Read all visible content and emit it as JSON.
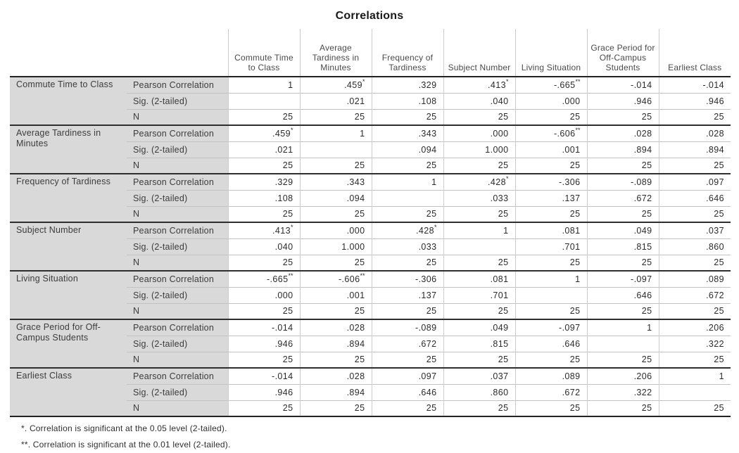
{
  "title": "Correlations",
  "table": {
    "columns": [
      "Commute Time to Class",
      "Average Tardiness in Minutes",
      "Frequency of Tardiness",
      "Subject Number",
      "Living Situation",
      "Grace Period for Off-Campus Students",
      "Earliest Class"
    ],
    "stat_labels": {
      "pearson": "Pearson Correlation",
      "sig": "Sig. (2-tailed)",
      "n": "N"
    },
    "variables": [
      {
        "name": "Commute Time to Class",
        "pearson": [
          "1",
          ".459*",
          ".329",
          ".413*",
          "-.665**",
          "-.014",
          "-.014"
        ],
        "sig": [
          "",
          ".021",
          ".108",
          ".040",
          ".000",
          ".946",
          ".946"
        ],
        "n": [
          "25",
          "25",
          "25",
          "25",
          "25",
          "25",
          "25"
        ]
      },
      {
        "name": "Average Tardiness in Minutes",
        "pearson": [
          ".459*",
          "1",
          ".343",
          ".000",
          "-.606**",
          ".028",
          ".028"
        ],
        "sig": [
          ".021",
          "",
          ".094",
          "1.000",
          ".001",
          ".894",
          ".894"
        ],
        "n": [
          "25",
          "25",
          "25",
          "25",
          "25",
          "25",
          "25"
        ]
      },
      {
        "name": "Frequency of Tardiness",
        "pearson": [
          ".329",
          ".343",
          "1",
          ".428*",
          "-.306",
          "-.089",
          ".097"
        ],
        "sig": [
          ".108",
          ".094",
          "",
          ".033",
          ".137",
          ".672",
          ".646"
        ],
        "n": [
          "25",
          "25",
          "25",
          "25",
          "25",
          "25",
          "25"
        ]
      },
      {
        "name": "Subject Number",
        "pearson": [
          ".413*",
          ".000",
          ".428*",
          "1",
          ".081",
          ".049",
          ".037"
        ],
        "sig": [
          ".040",
          "1.000",
          ".033",
          "",
          ".701",
          ".815",
          ".860"
        ],
        "n": [
          "25",
          "25",
          "25",
          "25",
          "25",
          "25",
          "25"
        ]
      },
      {
        "name": "Living Situation",
        "pearson": [
          "-.665**",
          "-.606**",
          "-.306",
          ".081",
          "1",
          "-.097",
          ".089"
        ],
        "sig": [
          ".000",
          ".001",
          ".137",
          ".701",
          "",
          ".646",
          ".672"
        ],
        "n": [
          "25",
          "25",
          "25",
          "25",
          "25",
          "25",
          "25"
        ]
      },
      {
        "name": "Grace Period for Off-Campus Students",
        "pearson": [
          "-.014",
          ".028",
          "-.089",
          ".049",
          "-.097",
          "1",
          ".206"
        ],
        "sig": [
          ".946",
          ".894",
          ".672",
          ".815",
          ".646",
          "",
          ".322"
        ],
        "n": [
          "25",
          "25",
          "25",
          "25",
          "25",
          "25",
          "25"
        ]
      },
      {
        "name": "Earliest Class",
        "pearson": [
          "-.014",
          ".028",
          ".097",
          ".037",
          ".089",
          ".206",
          "1"
        ],
        "sig": [
          ".946",
          ".894",
          ".646",
          ".860",
          ".672",
          ".322",
          ""
        ],
        "n": [
          "25",
          "25",
          "25",
          "25",
          "25",
          "25",
          "25"
        ]
      }
    ]
  },
  "footnotes": [
    "*. Correlation is significant at the 0.05 level (2-tailed).",
    "**. Correlation is significant at the 0.01 level (2-tailed)."
  ],
  "colors": {
    "label_background": "#d9d9d9",
    "dark_border": "#222222",
    "light_border": "#cccccc",
    "text": "#2b2b2b"
  }
}
